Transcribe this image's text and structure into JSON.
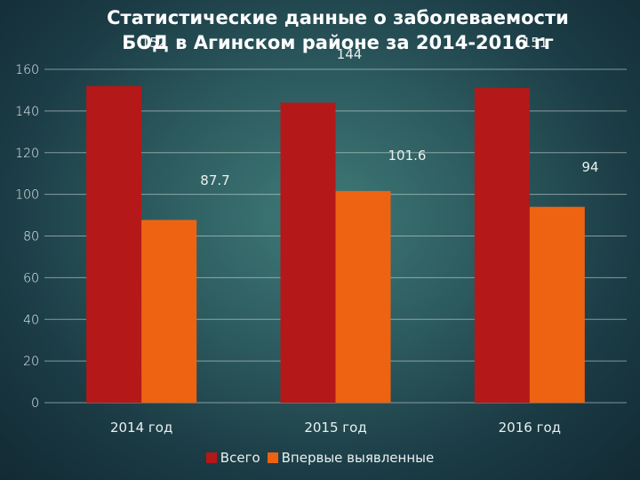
{
  "chart_data": {
    "type": "bar",
    "title_line1": "Статистические данные о заболеваемости",
    "title_line2": "БОД в Агинском районе за 2014-2016 гг",
    "categories": [
      "2014 год",
      "2015 год",
      "2016 год"
    ],
    "series": [
      {
        "name": "Всего",
        "values": [
          152,
          144,
          151
        ],
        "labels": [
          "152",
          "144",
          "151"
        ],
        "color": "#b51818"
      },
      {
        "name": "Впервые выявленные",
        "values": [
          87.7,
          101.6,
          94
        ],
        "labels": [
          "87.7",
          "101.6",
          "94"
        ],
        "color": "#ee6312"
      }
    ],
    "y_ticks": [
      "0",
      "20",
      "40",
      "60",
      "80",
      "100",
      "120",
      "140",
      "160"
    ],
    "ylim": [
      0,
      160
    ],
    "grid": true,
    "legend": "bottom",
    "xlabel": "",
    "ylabel": ""
  }
}
